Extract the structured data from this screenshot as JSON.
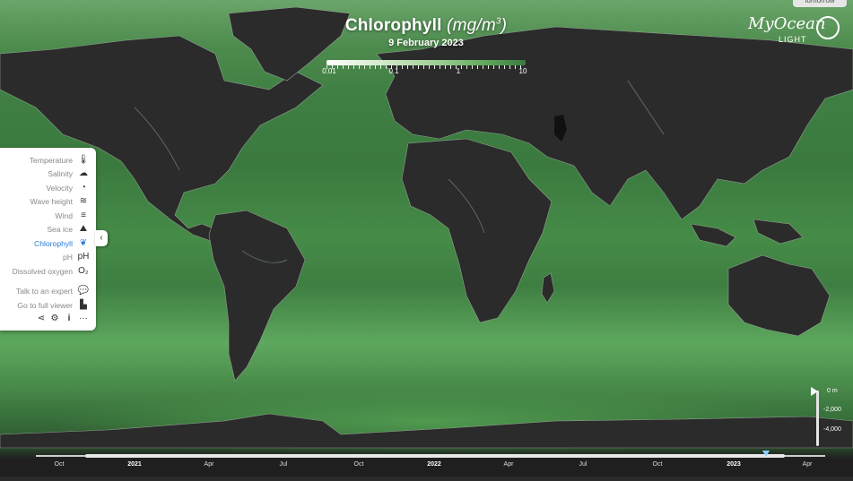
{
  "header": {
    "title": "Chlorophyll",
    "unit": "(mg/m",
    "unit_sup": "3",
    "unit_close": ")",
    "date": "9 February 2023"
  },
  "scale": {
    "labels": [
      "0.01",
      "0.1",
      "1",
      "10"
    ]
  },
  "logo": {
    "name": "MyOcean",
    "sub": "LIGHT"
  },
  "top_tab": "tomorrow",
  "sidebar": {
    "items": [
      {
        "label": "Temperature",
        "icon": "thermometer-icon",
        "glyph": "🌡"
      },
      {
        "label": "Salinity",
        "icon": "salinity-icon",
        "glyph": "☁"
      },
      {
        "label": "Velocity",
        "icon": "gauge-icon",
        "glyph": "◔"
      },
      {
        "label": "Wave height",
        "icon": "wave-icon",
        "glyph": "≋"
      },
      {
        "label": "Wind",
        "icon": "wind-icon",
        "glyph": "≡"
      },
      {
        "label": "Sea ice",
        "icon": "sea-ice-icon",
        "glyph": "⛰"
      },
      {
        "label": "Chlorophyll",
        "icon": "chlorophyll-icon",
        "glyph": "❦"
      },
      {
        "label": "pH",
        "icon": "ph-icon",
        "glyph": "pH"
      },
      {
        "label": "Dissolved oxygen",
        "icon": "oxygen-icon",
        "glyph": "O₂"
      },
      {
        "label": "Talk to an expert",
        "icon": "chat-icon",
        "glyph": "💬"
      },
      {
        "label": "Go to full viewer",
        "icon": "viewer-icon",
        "glyph": "▙"
      }
    ],
    "active": "Chlorophyll",
    "bottom_icons": [
      "share-icon",
      "settings-icon",
      "info-icon",
      "more-icon"
    ],
    "bottom_glyphs": [
      "⋖",
      "⚙",
      "i",
      "···"
    ],
    "collapse_glyph": "‹"
  },
  "depth": {
    "labels": [
      "0 m",
      "-2,000",
      "-4,000"
    ]
  },
  "timeline": {
    "labels": [
      {
        "text": "Oct",
        "year": false
      },
      {
        "text": "2021",
        "year": true
      },
      {
        "text": "Apr",
        "year": false
      },
      {
        "text": "Jul",
        "year": false
      },
      {
        "text": "Oct",
        "year": false
      },
      {
        "text": "2022",
        "year": true
      },
      {
        "text": "Apr",
        "year": false
      },
      {
        "text": "Jul",
        "year": false
      },
      {
        "text": "Oct",
        "year": false
      },
      {
        "text": "2023",
        "year": true
      },
      {
        "text": "Apr",
        "year": false
      }
    ]
  }
}
